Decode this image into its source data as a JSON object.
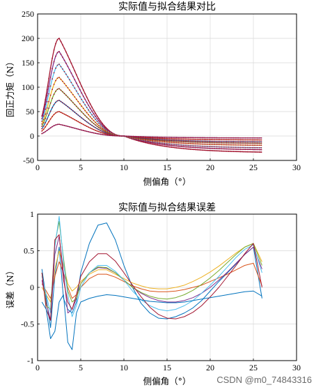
{
  "chart_data": [
    {
      "type": "line",
      "title": "实际值与拟合结果对比",
      "xlabel": "侧偏角（°）",
      "ylabel": "回正力矩（N）",
      "xlim": [
        0,
        30
      ],
      "ylim": [
        -50,
        250
      ],
      "xticks": [
        0,
        5,
        10,
        15,
        20,
        25,
        30
      ],
      "yticks": [
        -50,
        0,
        50,
        100,
        150,
        200,
        250
      ],
      "grid": true,
      "marker_dots": true,
      "series": [
        {
          "peak": 200,
          "tail": -33,
          "color": "#a2142f"
        },
        {
          "peak": 173,
          "tail": -28,
          "color": "#7e2f8e"
        },
        {
          "peak": 147,
          "tail": -24,
          "color": "#4dbeee"
        },
        {
          "peak": 120,
          "tail": -19,
          "color": "#edb120"
        },
        {
          "peak": 97,
          "tail": -15,
          "color": "#77ac30"
        },
        {
          "peak": 73,
          "tail": -12,
          "color": "#0072bd"
        },
        {
          "peak": 50,
          "tail": -8,
          "color": "#d95319"
        },
        {
          "peak": 24,
          "tail": -4,
          "color": "#7e2f8e"
        }
      ]
    },
    {
      "type": "line",
      "title": "实际值与拟合结果误差",
      "xlabel": "侧偏角（°）",
      "ylabel": "误差（N）",
      "xlim": [
        0,
        30
      ],
      "ylim": [
        -1,
        1
      ],
      "xticks": [
        0,
        5,
        10,
        15,
        20,
        25,
        30
      ],
      "yticks": [
        -1,
        -0.5,
        0,
        0.5,
        1
      ],
      "grid": true,
      "x": [
        0.5,
        1.0,
        1.5,
        2.0,
        2.5,
        3.0,
        3.5,
        4.0,
        4.5,
        5.0,
        6.0,
        7.0,
        8.0,
        9.0,
        10.0,
        11.0,
        12.0,
        13.0,
        14.0,
        15.0,
        16.0,
        17.0,
        18.0,
        19.0,
        20.0,
        21.0,
        22.0,
        23.0,
        24.0,
        25.0,
        26.0
      ],
      "series": [
        {
          "color": "#0072bd",
          "values": [
            0.25,
            -0.15,
            -0.55,
            0.15,
            0.55,
            -0.15,
            -0.3,
            -0.35,
            -0.2,
            0.2,
            0.6,
            0.85,
            0.88,
            0.65,
            0.3,
            0.0,
            -0.22,
            -0.35,
            -0.42,
            -0.43,
            -0.4,
            -0.35,
            -0.28,
            -0.18,
            -0.05,
            0.08,
            0.2,
            0.32,
            0.45,
            0.55,
            -0.15
          ]
        },
        {
          "color": "#d95319",
          "values": [
            0.05,
            -0.05,
            -0.15,
            0.15,
            0.35,
            0.2,
            0.0,
            -0.15,
            -0.1,
            0.0,
            0.12,
            0.18,
            0.18,
            0.14,
            0.08,
            0.02,
            -0.02,
            -0.05,
            -0.06,
            -0.06,
            -0.05,
            -0.03,
            0.0,
            0.03,
            0.08,
            0.13,
            0.18,
            0.24,
            0.3,
            0.33,
            0.02
          ]
        },
        {
          "color": "#edb120",
          "values": [
            0.0,
            -0.1,
            -0.2,
            0.25,
            0.5,
            0.3,
            0.05,
            -0.05,
            0.0,
            0.08,
            0.18,
            0.24,
            0.24,
            0.18,
            0.12,
            0.06,
            0.02,
            -0.01,
            -0.02,
            -0.02,
            0.0,
            0.03,
            0.08,
            0.14,
            0.21,
            0.29,
            0.38,
            0.47,
            0.55,
            0.6,
            0.35
          ]
        },
        {
          "color": "#7e2f8e",
          "values": [
            0.1,
            -0.2,
            -0.45,
            0.45,
            0.7,
            0.2,
            -0.35,
            -0.3,
            -0.15,
            0.05,
            0.2,
            0.27,
            0.26,
            0.2,
            0.1,
            0.0,
            -0.08,
            -0.14,
            -0.18,
            -0.2,
            -0.2,
            -0.18,
            -0.14,
            -0.08,
            0.0,
            0.1,
            0.21,
            0.33,
            0.45,
            0.55,
            0.25
          ]
        },
        {
          "color": "#77ac30",
          "values": [
            0.2,
            -0.25,
            -0.3,
            0.6,
            0.9,
            0.4,
            -0.05,
            -0.2,
            -0.15,
            0.05,
            0.2,
            0.28,
            0.27,
            0.2,
            0.1,
            0.0,
            -0.07,
            -0.12,
            -0.15,
            -0.16,
            -0.14,
            -0.1,
            -0.04,
            0.04,
            0.13,
            0.23,
            0.34,
            0.45,
            0.55,
            0.6,
            0.3
          ]
        },
        {
          "color": "#4dbeee",
          "values": [
            0.15,
            -0.1,
            -0.35,
            0.55,
            0.97,
            0.35,
            -0.1,
            -0.4,
            -0.25,
            0.0,
            0.2,
            0.3,
            0.3,
            0.22,
            0.1,
            -0.05,
            -0.17,
            -0.25,
            -0.3,
            -0.32,
            -0.3,
            -0.25,
            -0.18,
            -0.08,
            0.03,
            0.15,
            0.28,
            0.41,
            0.52,
            0.58,
            0.2
          ]
        },
        {
          "color": "#a2142f",
          "values": [
            0.2,
            -0.3,
            -0.45,
            0.65,
            0.72,
            0.1,
            -0.2,
            -0.3,
            -0.1,
            0.15,
            0.35,
            0.46,
            0.46,
            0.36,
            0.2,
            0.03,
            -0.13,
            -0.27,
            -0.37,
            -0.42,
            -0.43,
            -0.4,
            -0.34,
            -0.25,
            -0.13,
            0.0,
            0.15,
            0.3,
            0.46,
            0.6,
            0.0
          ]
        },
        {
          "color": "#0072bd",
          "values": [
            -0.2,
            -0.3,
            -0.7,
            -0.6,
            -0.2,
            -0.1,
            -0.75,
            -0.85,
            -0.35,
            -0.2,
            -0.15,
            -0.12,
            -0.1,
            -0.11,
            -0.13,
            -0.15,
            -0.17,
            -0.19,
            -0.2,
            -0.21,
            -0.21,
            -0.2,
            -0.18,
            -0.16,
            -0.14,
            -0.12,
            -0.1,
            -0.08,
            -0.06,
            -0.05,
            -0.12
          ]
        }
      ]
    }
  ],
  "watermark": "CSDN @m0_74843316"
}
